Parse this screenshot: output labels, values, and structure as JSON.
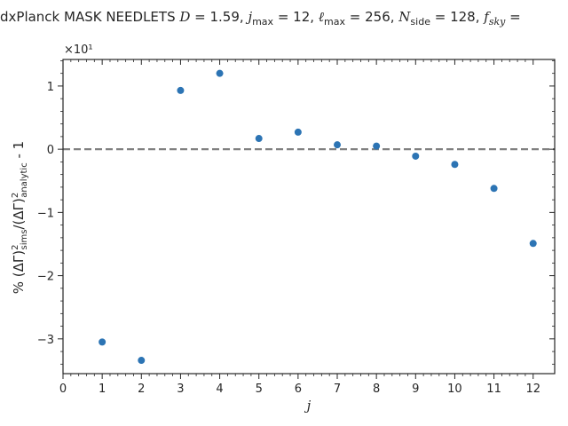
{
  "chart_data": {
    "type": "scatter",
    "title": "dxPlanck MASK NEEDLETS D = 1.59, j_max = 12, ℓ_max = 256, N_side = 128, f_sky =",
    "title_parts": {
      "prefix": "dxPlanck MASK NEEDLETS ",
      "D_sym": "D",
      "D_val": " = 1.59,  ",
      "j_sym": "j",
      "j_sub": "max",
      "j_val": " = 12,  ",
      "l_sym": "ℓ",
      "l_sub": "max",
      "l_val": " = 256,  ",
      "n_sym": "N",
      "n_sub": "side",
      "n_val": " = 128,  ",
      "f_sym": "f",
      "f_sub": "sky",
      "f_val": " ="
    },
    "xlabel": "j",
    "ylabel": "% (ΔΓ)²sims/(ΔΓ)²analytic - 1",
    "ylabel_parts": {
      "pre": "% (ΔΓ)",
      "sup1": "2",
      "sub1": "sims",
      "mid": "/(ΔΓ)",
      "sup2": "2",
      "sub2": "analytic",
      "post": " - 1"
    },
    "y_multiplier": "×10¹",
    "xlim": [
      0,
      12.55
    ],
    "ylim": [
      -3.55,
      1.42
    ],
    "x_ticks": [
      0,
      1,
      2,
      3,
      4,
      5,
      6,
      7,
      8,
      9,
      10,
      11,
      12
    ],
    "y_ticks": [
      -3,
      -2,
      -1,
      0,
      1
    ],
    "y_tick_labels": [
      "−3",
      "−2",
      "−1",
      "0",
      "1"
    ],
    "x": [
      1,
      2,
      3,
      4,
      5,
      6,
      7,
      8,
      9,
      10,
      11,
      12
    ],
    "y": [
      -3.05,
      -3.34,
      0.93,
      1.2,
      0.17,
      0.27,
      0.07,
      0.05,
      -0.11,
      -0.24,
      -0.62,
      -1.49
    ],
    "reference_line": 0,
    "grid": false,
    "colors": {
      "points": "#2c74b4",
      "reference_line": "#808080",
      "axes": "#262626"
    }
  }
}
